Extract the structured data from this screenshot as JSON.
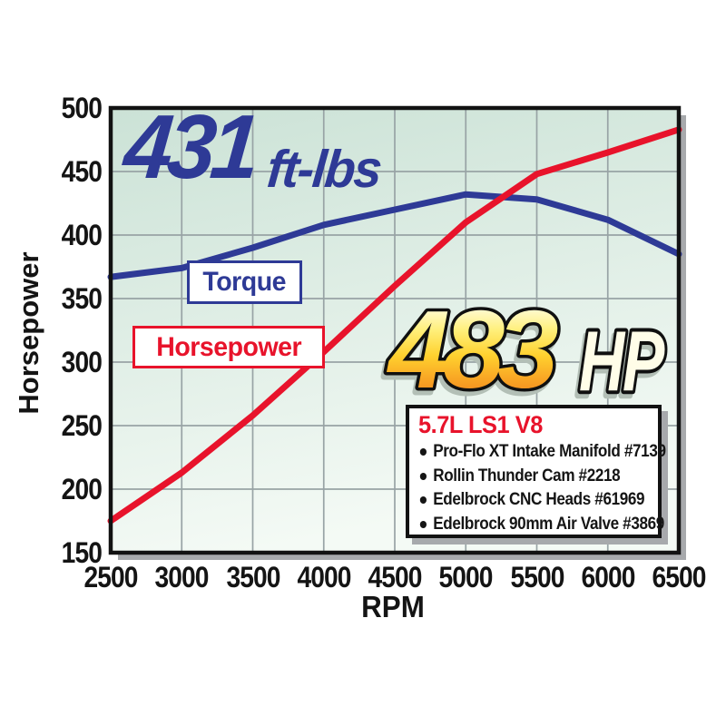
{
  "chart_data": {
    "type": "line",
    "xlabel": "RPM",
    "ylabel": "Horsepower",
    "xlim": [
      2500,
      6500
    ],
    "ylim": [
      150,
      500
    ],
    "grid": true,
    "x": [
      2500,
      3000,
      3500,
      4000,
      4500,
      5000,
      5500,
      6000,
      6500
    ],
    "x_tick_labels": [
      "2500",
      "3000",
      "3500",
      "4000",
      "4500",
      "5000",
      "5500",
      "6000",
      "6500"
    ],
    "y_ticks": [
      500,
      450,
      400,
      350,
      300,
      250,
      200,
      150
    ],
    "y_tick_labels": [
      "500",
      "450",
      "400",
      "350",
      "300",
      "250",
      "200",
      "150"
    ],
    "series": [
      {
        "name": "Torque",
        "color": "#2e3a96",
        "values": [
          367,
          374,
          390,
          408,
          420,
          432,
          428,
          412,
          385
        ]
      },
      {
        "name": "Horsepower",
        "color": "#e8132b",
        "values": [
          175,
          213,
          258,
          308,
          360,
          410,
          448,
          465,
          483
        ]
      }
    ],
    "annotations": [
      {
        "text": "431 ft-lbs",
        "meaning": "peak torque"
      },
      {
        "text": "483 HP",
        "meaning": "peak horsepower"
      }
    ]
  },
  "labels": {
    "peak_torque_value": "431",
    "peak_torque_units": "ft-lbs",
    "peak_hp_value": "483",
    "peak_hp_units": "HP",
    "torque_tag": "Torque",
    "horsepower_tag": "Horsepower",
    "x_axis_title": "RPM",
    "y_axis_title": "Horsepower"
  },
  "info_box": {
    "title": "5.7L LS1 V8",
    "items": [
      "Pro-Flo XT Intake Manifold #7139",
      "Rollin Thunder Cam #2218",
      "Edelbrock CNC Heads #61969",
      "Edelbrock 90mm Air Valve #3869"
    ]
  },
  "colors": {
    "torque_line": "#2e3a96",
    "horsepower_line": "#e8132b",
    "plot_bg_top": "#cbe2d6",
    "plot_bg_bottom": "#f4faf5",
    "gridline": "#98a3a5",
    "plot_border": "#121212",
    "plot_shadow": "#a7a9ac",
    "gold_top": "#fffde8",
    "gold_mid": "#ffd12e",
    "gold_bottom": "#f28c1f",
    "headline_blue": "#2e3a96",
    "info_title_red": "#e8132b"
  }
}
